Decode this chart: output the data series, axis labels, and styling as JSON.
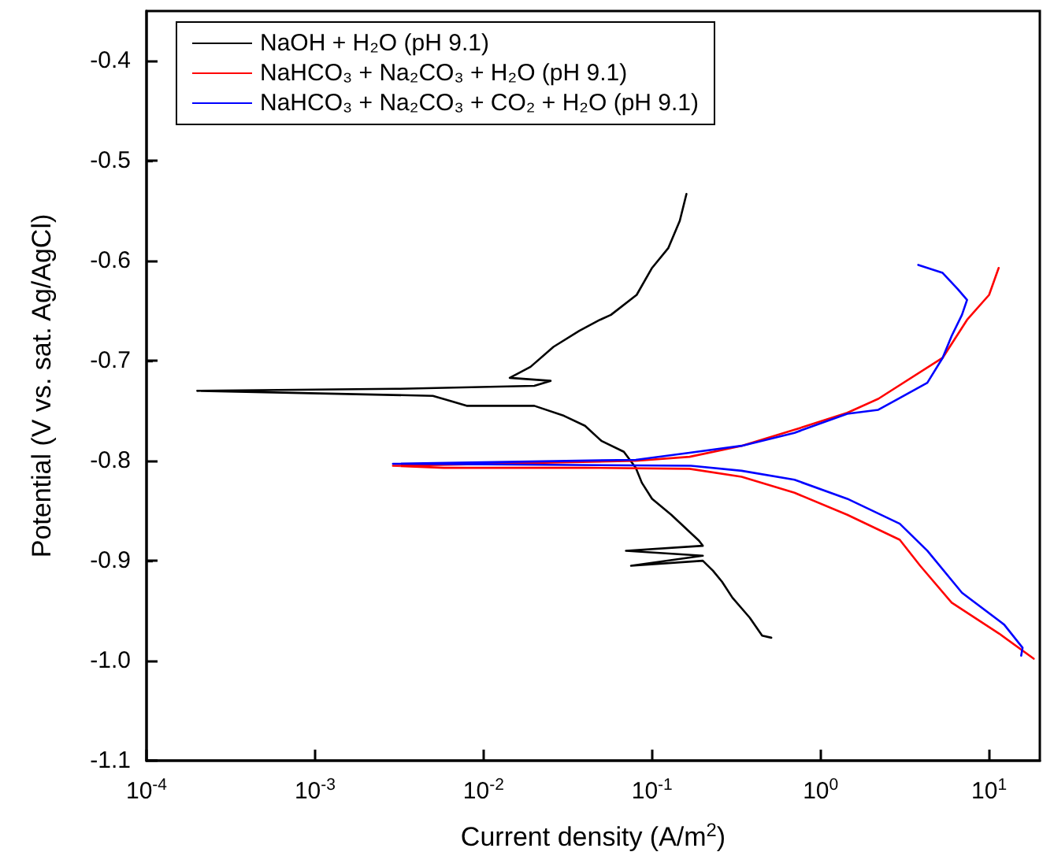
{
  "chart_data": {
    "type": "line",
    "xlabel": "Current density (A/m$^{2}$)",
    "ylabel": "Potential (V vs. sat. Ag/AgCl)",
    "log": "x",
    "xlim": [
      0.0001,
      20
    ],
    "ylim": [
      -1.1,
      -0.35
    ],
    "xticks": [
      {
        "value": 0.0001,
        "label": "10$^{-4}$"
      },
      {
        "value": 0.001,
        "label": "10$^{-3}$"
      },
      {
        "value": 0.01,
        "label": "10$^{-2}$"
      },
      {
        "value": 0.1,
        "label": "10$^{-1}$"
      },
      {
        "value": 1,
        "label": "10$^{0}$"
      },
      {
        "value": 10,
        "label": "10$^{1}$"
      }
    ],
    "yticks": [
      {
        "value": -1.1,
        "label": "-1.1"
      },
      {
        "value": -1.0,
        "label": "-1.0"
      },
      -0.9,
      -0.8,
      -0.7,
      -0.6,
      -0.5,
      -0.4
    ],
    "legend": "top left",
    "grid": false,
    "marker": "none",
    "line_style": "solid",
    "series": [
      {
        "name": "NaOH + H₂O (pH 9.1)",
        "color": "#000000",
        "x": [
          0.51,
          0.45,
          0.38,
          0.3,
          0.26,
          0.23,
          0.2,
          0.075,
          0.2,
          0.07,
          0.2,
          0.19,
          0.13,
          0.1,
          0.087,
          0.08,
          0.068,
          0.05,
          0.04,
          0.03,
          0.02,
          0.008,
          0.005,
          0.0002,
          0.003,
          0.02,
          0.025,
          0.0143,
          0.019,
          0.026,
          0.037,
          0.049,
          0.057,
          0.081,
          0.1,
          0.125,
          0.146,
          0.16
        ],
        "values": [
          -0.977,
          -0.975,
          -0.957,
          -0.937,
          -0.921,
          -0.91,
          -0.9,
          -0.905,
          -0.895,
          -0.89,
          -0.885,
          -0.88,
          -0.854,
          -0.838,
          -0.822,
          -0.807,
          -0.791,
          -0.78,
          -0.765,
          -0.755,
          -0.745,
          -0.745,
          -0.735,
          -0.73,
          -0.728,
          -0.725,
          -0.72,
          -0.717,
          -0.706,
          -0.686,
          -0.67,
          -0.659,
          -0.654,
          -0.634,
          -0.607,
          -0.587,
          -0.56,
          -0.533
        ]
      },
      {
        "name": "NaHCO₃ + Na₂CO₃ + H₂O (pH 9.1)",
        "color": "#ff0000",
        "x": [
          18.4,
          11.5,
          6.0,
          3.9,
          2.95,
          1.44,
          0.7,
          0.34,
          0.167,
          0.04,
          0.0058,
          0.0029,
          0.08,
          0.167,
          0.34,
          0.7,
          1.44,
          2.2,
          5.3,
          7.4,
          10,
          11.4
        ],
        "values": [
          -0.998,
          -0.973,
          -0.942,
          -0.905,
          -0.879,
          -0.854,
          -0.832,
          -0.816,
          -0.808,
          -0.807,
          -0.807,
          -0.805,
          -0.8,
          -0.796,
          -0.785,
          -0.769,
          -0.752,
          -0.738,
          -0.697,
          -0.659,
          -0.634,
          -0.607
        ]
      },
      {
        "name": "NaHCO₃ + Na₂CO₃ + CO₂ + H₂O (pH 9.1)",
        "color": "#0000ff",
        "x": [
          15.5,
          15.8,
          12.3,
          6.9,
          4.3,
          2.95,
          1.44,
          0.7,
          0.34,
          0.17,
          0.0029,
          0.08,
          0.167,
          0.34,
          0.7,
          1.44,
          2.2,
          4.3,
          5.3,
          6.0,
          6.9,
          7.4,
          6.5,
          5.3,
          3.8
        ],
        "values": [
          -0.995,
          -0.987,
          -0.964,
          -0.932,
          -0.89,
          -0.863,
          -0.838,
          -0.819,
          -0.81,
          -0.805,
          -0.803,
          -0.799,
          -0.792,
          -0.785,
          -0.772,
          -0.753,
          -0.749,
          -0.722,
          -0.697,
          -0.675,
          -0.654,
          -0.639,
          -0.628,
          -0.612,
          -0.604
        ]
      }
    ]
  }
}
